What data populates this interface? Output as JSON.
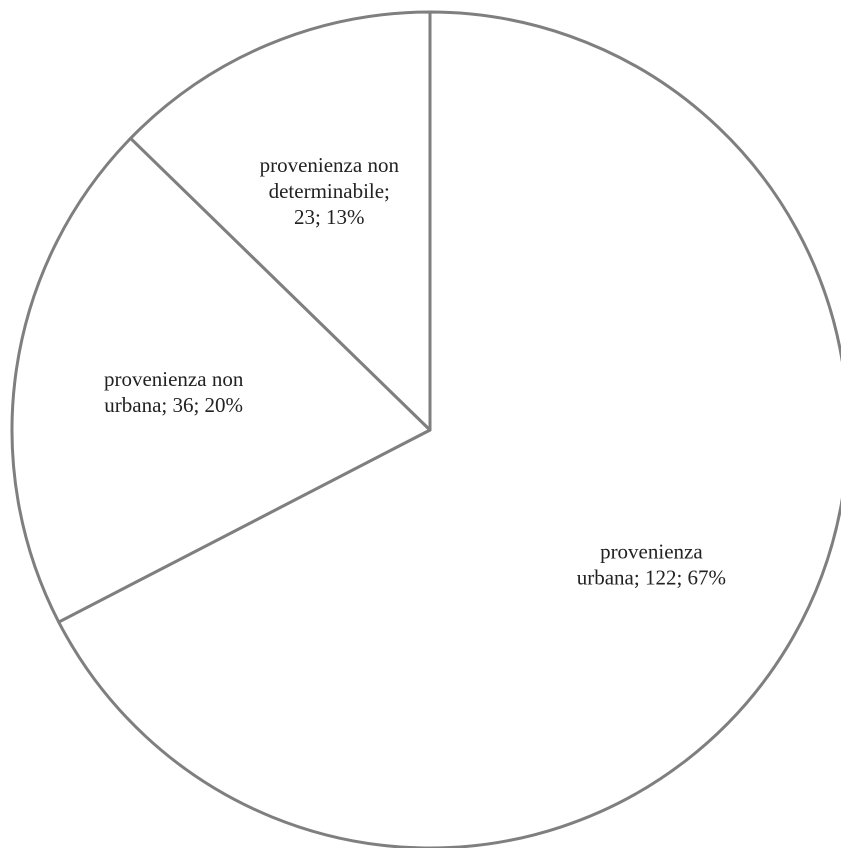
{
  "chart_data": {
    "type": "pie",
    "slices": [
      {
        "name": "provenienza urbana",
        "value": 122,
        "percent": "67%",
        "label_lines": [
          "provenienza",
          "urbana; 122; 67%"
        ]
      },
      {
        "name": "provenienza non urbana",
        "value": 36,
        "percent": "20%",
        "label_lines": [
          "provenienza non",
          "urbana; 36; 20%"
        ]
      },
      {
        "name": "provenienza non determinabile",
        "value": 23,
        "percent": "13%",
        "label_lines": [
          "provenienza non",
          "determinabile;",
          "23; 13%"
        ]
      }
    ],
    "start_angle": "12 o'clock",
    "direction": "clockwise",
    "slice_fill": "#ffffff",
    "slice_stroke": "#7f7f7f",
    "label_color": "#222222"
  }
}
